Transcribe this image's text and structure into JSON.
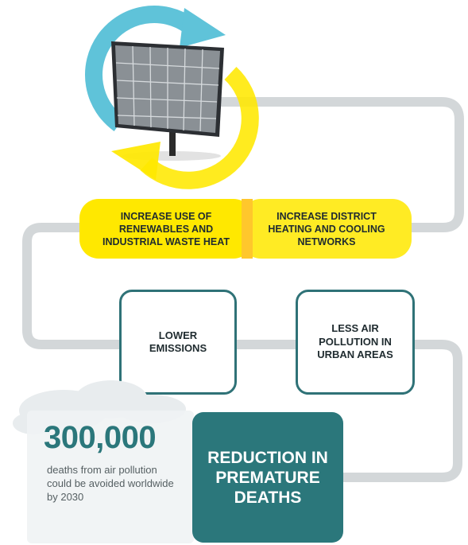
{
  "diagram": {
    "yellow_boxes": [
      "INCREASE USE OF RENEWABLES AND INDUSTRIAL WASTE HEAT",
      "INCREASE DISTRICT HEATING AND COOLING NETWORKS"
    ],
    "outline_boxes": [
      "LOWER EMISSIONS",
      "LESS AIR POLLUTION IN URBAN AREAS"
    ],
    "result_box": "REDUCTION IN PREMATURE DEATHS"
  },
  "stat": {
    "value": "300,000",
    "description": "deaths from air pollution could be avoided worldwide by 2030"
  },
  "colors": {
    "teal": "#2b777b",
    "yellow": "#ffe800",
    "pipe": "#d3d7d9",
    "cycle_blue": "#5fc3d9"
  }
}
